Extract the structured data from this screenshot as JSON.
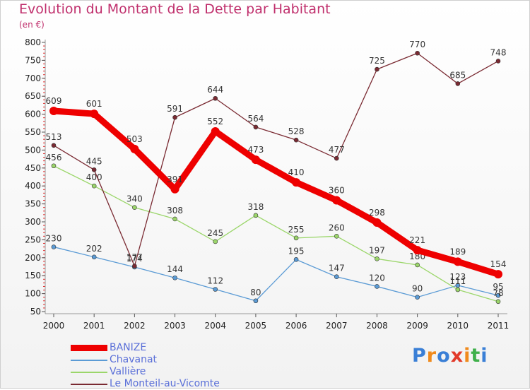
{
  "title": "Evolution du Montant de la Dette par Habitant",
  "subtitle": "(en €)",
  "logo": {
    "text": "Proxiti",
    "colors": [
      "#3a7fd6",
      "#f08a1c",
      "#3a7fd6",
      "#e23a2a",
      "#f08a1c",
      "#3fb04b",
      "#3a7fd6"
    ]
  },
  "chart_data": {
    "type": "line",
    "title": "Evolution du Montant de la Dette par Habitant",
    "subtitle": "(en €)",
    "xlabel": "",
    "ylabel": "",
    "ylim": [
      50,
      800
    ],
    "yticks": [
      50,
      100,
      150,
      200,
      250,
      300,
      350,
      400,
      450,
      500,
      550,
      600,
      650,
      700,
      750,
      800
    ],
    "grid": false,
    "legend_position": "bottom-left",
    "categories": [
      "2000",
      "2001",
      "2002",
      "2003",
      "2004",
      "2005",
      "2006",
      "2007",
      "2008",
      "2009",
      "2010",
      "2011"
    ],
    "series": [
      {
        "name": "BANIZE",
        "color": "#ee0000",
        "values": [
          609,
          601,
          503,
          391,
          552,
          473,
          410,
          360,
          298,
          221,
          189,
          154
        ]
      },
      {
        "name": "Chavanat",
        "color": "#5b9bd5",
        "values": [
          230,
          202,
          174,
          144,
          112,
          80,
          195,
          147,
          120,
          90,
          123,
          95
        ]
      },
      {
        "name": "Vallière",
        "color": "#9bd66a",
        "values": [
          456,
          400,
          340,
          308,
          245,
          318,
          255,
          260,
          197,
          180,
          111,
          78
        ]
      },
      {
        "name": "Le Monteil-au-Vicomte",
        "color": "#7a2a32",
        "values": [
          513,
          445,
          177,
          591,
          644,
          564,
          528,
          477,
          725,
          770,
          685,
          748
        ]
      }
    ]
  }
}
